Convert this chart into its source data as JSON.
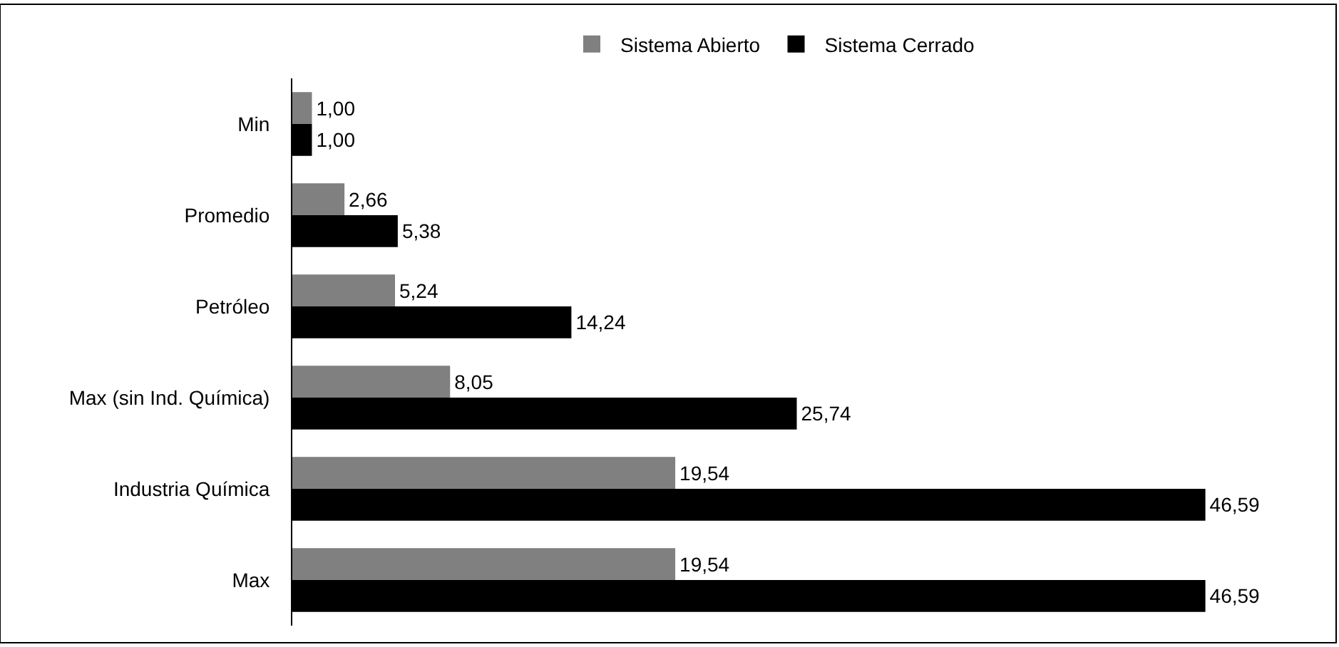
{
  "chart_data": {
    "type": "bar",
    "orientation": "horizontal",
    "categories": [
      "Min",
      "Promedio",
      "Petróleo",
      "Max (sin Ind. Química)",
      "Industria Química",
      "Max"
    ],
    "series": [
      {
        "name": "Sistema Abierto",
        "color": "#808080",
        "values": [
          1.0,
          2.66,
          5.24,
          8.05,
          19.54,
          19.54
        ],
        "value_labels": [
          "1,00",
          "2,66",
          "5,24",
          "8,05",
          "19,54",
          "19,54"
        ]
      },
      {
        "name": "Sistema Cerrado",
        "color": "#000000",
        "values": [
          1.0,
          5.38,
          14.24,
          25.74,
          46.59,
          46.59
        ],
        "value_labels": [
          "1,00",
          "5,38",
          "14,24",
          "25,74",
          "46,59",
          "46,59"
        ]
      }
    ],
    "legend": "top"
  }
}
